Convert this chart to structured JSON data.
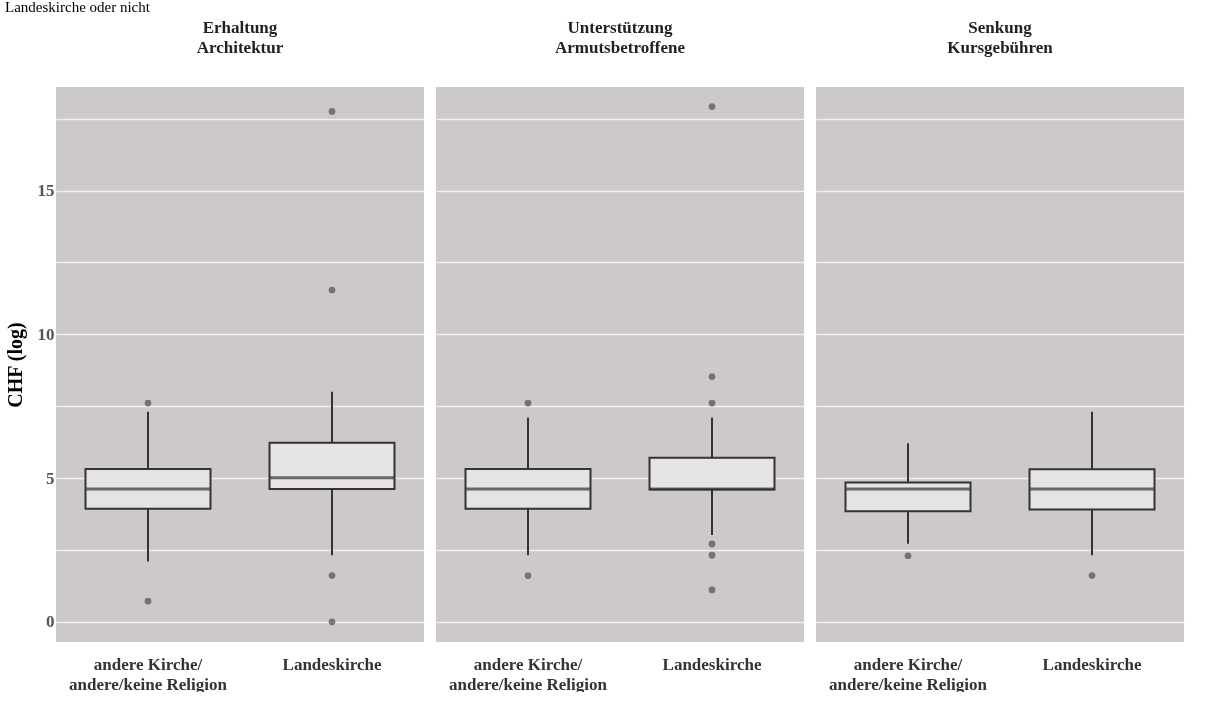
{
  "chart_data": [
    {
      "type": "box",
      "title": "Erhaltung\nArchitektur",
      "ylabel": "CHF (log)",
      "annotations": [
        "Landeskirche oder nicht"
      ],
      "categories": [
        "andere Kirche/\nandere/keine Religion",
        "Landeskirche"
      ],
      "series": [
        {
          "color": "#e5e3e3",
          "boxes": [
            {
              "low": 2.1,
              "q1": 3.93,
              "median": 4.62,
              "q3": 5.32,
              "high": 7.31,
              "outliers": [
                7.61,
                0.72
              ]
            },
            {
              "low": 2.32,
              "q1": 4.62,
              "median": 5.01,
              "q3": 6.23,
              "high": 8.0,
              "outliers": [
                17.75,
                11.54,
                1.61,
                0
              ]
            }
          ]
        }
      ],
      "ylim": [
        -0.7,
        18.6
      ],
      "yticks": [
        0,
        {
          "value": 2.5,
          "label": null
        },
        5,
        {
          "value": 7.5,
          "label": null
        },
        10,
        {
          "value": 12.5,
          "label": null
        },
        15,
        {
          "value": 17.5,
          "label": null
        }
      ],
      "grid": "y"
    },
    {
      "type": "box",
      "title": "Unterstützung\nArmutsbetroffene",
      "categories": [
        "andere Kirche/\nandere/keine Religion",
        "Landeskirche"
      ],
      "series": [
        {
          "color": "#e5e3e3",
          "boxes": [
            {
              "low": 2.32,
              "q1": 3.93,
              "median": 4.62,
              "q3": 5.32,
              "high": 7.1,
              "outliers": [
                7.61,
                1.61
              ]
            },
            {
              "low": 3.02,
              "q1": 4.6,
              "median": 4.62,
              "q3": 5.71,
              "high": 7.1,
              "outliers": [
                17.92,
                8.53,
                7.61,
                2.71,
                2.32,
                1.11
              ]
            }
          ]
        }
      ],
      "ylim": [
        -0.7,
        18.6
      ],
      "yticks": [
        0,
        {
          "value": 2.5,
          "label": null
        },
        5,
        {
          "value": 7.5,
          "label": null
        },
        10,
        {
          "value": 12.5,
          "label": null
        },
        15,
        {
          "value": 17.5,
          "label": null
        }
      ],
      "grid": "y",
      "tick_labels": "x"
    },
    {
      "type": "box",
      "title": "Senkung\nKursgebühren",
      "categories": [
        "andere Kirche/\nandere/keine Religion",
        "Landeskirche"
      ],
      "series": [
        {
          "color": "#e5e3e3",
          "boxes": [
            {
              "low": 2.72,
              "q1": 3.85,
              "median": 4.62,
              "q3": 4.85,
              "high": 6.21,
              "outliers": [
                2.3
              ]
            },
            {
              "low": 2.32,
              "q1": 3.91,
              "median": 4.62,
              "q3": 5.31,
              "high": 7.31,
              "outliers": [
                1.61
              ]
            }
          ]
        }
      ],
      "ylim": [
        -0.7,
        18.6
      ],
      "yticks": [
        0,
        {
          "value": 2.5,
          "label": null
        },
        5,
        {
          "value": 7.5,
          "label": null
        },
        10,
        {
          "value": 12.5,
          "label": null
        },
        15,
        {
          "value": 17.5,
          "label": null
        }
      ],
      "grid": "y",
      "tick_labels": "x"
    }
  ]
}
